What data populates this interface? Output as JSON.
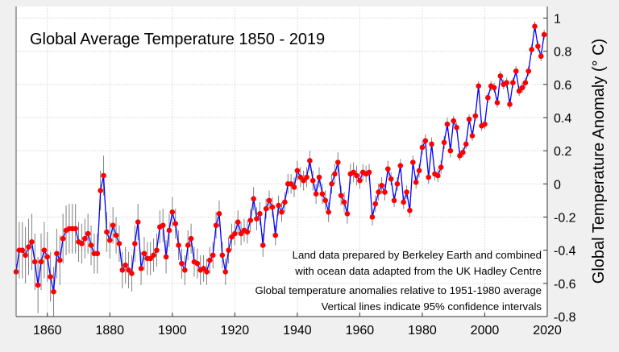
{
  "chart_data": {
    "type": "line",
    "title": "Global Average Temperature 1850 - 2019",
    "ylabel": "Global Temperature Anomaly (° C)",
    "xlabel": "",
    "xlim": [
      1850,
      2020
    ],
    "ylim": [
      -0.8,
      1.07
    ],
    "xticks": [
      1860,
      1880,
      1900,
      1920,
      1940,
      1960,
      1980,
      2000,
      2020
    ],
    "yticks": [
      -0.8,
      -0.6,
      -0.4,
      -0.2,
      0,
      0.2,
      0.4,
      0.6,
      0.8,
      1
    ],
    "ytick_labels": [
      "-0.8",
      "-0.6",
      "-0.4",
      "-0.2",
      "0",
      "0.2",
      "0.4",
      "0.6",
      "0.8",
      "1"
    ],
    "grid": true,
    "x_start": 1850,
    "values": [
      -0.53,
      -0.4,
      -0.4,
      -0.43,
      -0.38,
      -0.35,
      -0.47,
      -0.61,
      -0.47,
      -0.4,
      -0.44,
      -0.56,
      -0.65,
      -0.42,
      -0.46,
      -0.33,
      -0.28,
      -0.27,
      -0.27,
      -0.27,
      -0.35,
      -0.36,
      -0.33,
      -0.3,
      -0.37,
      -0.42,
      -0.42,
      -0.04,
      0.05,
      -0.29,
      -0.34,
      -0.25,
      -0.31,
      -0.36,
      -0.52,
      -0.49,
      -0.52,
      -0.54,
      -0.36,
      -0.23,
      -0.51,
      -0.42,
      -0.45,
      -0.45,
      -0.43,
      -0.4,
      -0.26,
      -0.25,
      -0.44,
      -0.28,
      -0.17,
      -0.24,
      -0.37,
      -0.48,
      -0.52,
      -0.37,
      -0.33,
      -0.47,
      -0.48,
      -0.52,
      -0.51,
      -0.53,
      -0.46,
      -0.43,
      -0.25,
      -0.18,
      -0.43,
      -0.53,
      -0.4,
      -0.32,
      -0.3,
      -0.23,
      -0.3,
      -0.28,
      -0.29,
      -0.22,
      -0.09,
      -0.21,
      -0.18,
      -0.37,
      -0.15,
      -0.1,
      -0.14,
      -0.31,
      -0.13,
      -0.17,
      -0.11,
      0.0,
      0.0,
      -0.02,
      0.08,
      0.04,
      0.02,
      0.04,
      0.14,
      0.02,
      -0.06,
      0.04,
      -0.06,
      -0.1,
      -0.17,
      0.0,
      0.06,
      0.13,
      -0.07,
      -0.11,
      -0.18,
      0.06,
      0.07,
      0.05,
      0.02,
      0.07,
      0.06,
      0.07,
      -0.2,
      -0.12,
      -0.05,
      -0.01,
      -0.05,
      0.09,
      0.03,
      -0.1,
      0.0,
      0.11,
      -0.11,
      -0.05,
      -0.16,
      0.13,
      0.01,
      0.08,
      0.22,
      0.26,
      0.04,
      0.24,
      0.06,
      0.05,
      0.1,
      0.25,
      0.36,
      0.2,
      0.38,
      0.34,
      0.17,
      0.19,
      0.24,
      0.39,
      0.29,
      0.41,
      0.59,
      0.35,
      0.36,
      0.52,
      0.59,
      0.58,
      0.49,
      0.65,
      0.6,
      0.61,
      0.48,
      0.61,
      0.68,
      0.56,
      0.58,
      0.61,
      0.68,
      0.81,
      0.95,
      0.83,
      0.77,
      0.9
    ],
    "ci95_halfwidth_by_decade": [
      0.17,
      0.15,
      0.12,
      0.11,
      0.1,
      0.09,
      0.08,
      0.07,
      0.06,
      0.06,
      0.06,
      0.05,
      0.04,
      0.04,
      0.03,
      0.03,
      0.03
    ],
    "line_color": "#0000ff",
    "marker_color": "#ff0000",
    "errorbar_color": "#808080",
    "annotations": [
      "Land data prepared by Berkeley Earth and combined",
      "with ocean data adapted from the UK Hadley Centre",
      "Global temperature anomalies relative to 1951-1980 average",
      "Vertical lines indicate 95% confidence intervals"
    ]
  }
}
